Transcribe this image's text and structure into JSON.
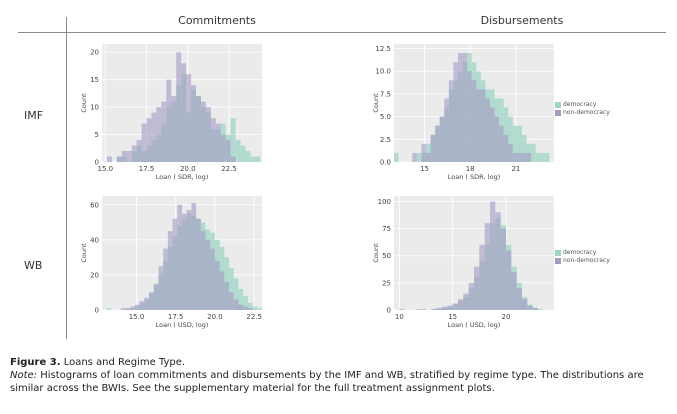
{
  "headers": {
    "columns": [
      "Commitments",
      "Disbursements"
    ],
    "rows": [
      "IMF",
      "WB"
    ]
  },
  "caption": {
    "figure_label": "Figure 3.",
    "title": "Loans and Regime Type.",
    "note_label": "Note:",
    "note_text": "Histograms of loan commitments and disbursements by the IMF and WB, stratified by regime type. The distributions are similar across the BWIs. See the supplementary material for the full treatment assignment plots."
  },
  "colors": {
    "democracy": "#9fd5c6",
    "non_democracy": "#a49ac4",
    "panel_bg": "#ebebeb",
    "grid": "#ffffff"
  },
  "chart_data": [
    {
      "type": "bar",
      "panel": "IMF-Commitments",
      "xlabel": "Loan ( SDR, log)",
      "ylabel": "Count",
      "xlim": [
        14.8,
        24.5
      ],
      "ylim": [
        0,
        21.5
      ],
      "xticks": [
        "15.0",
        "17.5",
        "20.0",
        "22.5"
      ],
      "xtick_values": [
        15.0,
        17.5,
        20.0,
        22.5
      ],
      "yticks": [
        "0",
        "5",
        "10",
        "15",
        "20"
      ],
      "ytick_values": [
        0,
        5,
        10,
        15,
        20
      ],
      "bin_start": 14.8,
      "bin_width": 0.3,
      "series": [
        {
          "name": "democracy",
          "values": [
            0,
            0,
            0,
            1,
            1,
            0,
            2,
            3,
            2,
            3,
            4,
            5,
            7,
            10,
            11,
            14,
            16,
            9,
            13,
            12,
            10,
            9,
            6,
            6,
            7,
            5,
            8,
            4,
            3,
            2,
            1,
            1,
            0,
            0,
            0
          ]
        },
        {
          "name": "non-democracy",
          "values": [
            0,
            1,
            0,
            1,
            2,
            2,
            3,
            4,
            7,
            8,
            9,
            10,
            11,
            15,
            12,
            20,
            18,
            16,
            14,
            12,
            11,
            10,
            8,
            7,
            5,
            4,
            1,
            0,
            0,
            0,
            0,
            0,
            0,
            0,
            0
          ]
        }
      ]
    },
    {
      "type": "bar",
      "panel": "IMF-Disbursements",
      "xlabel": "Loan ( SDR, log)",
      "ylabel": "Count",
      "xlim": [
        13.0,
        23.5
      ],
      "ylim": [
        0,
        13
      ],
      "xticks": [
        "15",
        "18",
        "21"
      ],
      "xtick_values": [
        15,
        18,
        21
      ],
      "yticks": [
        "0.0",
        "2.5",
        "5.0",
        "7.5",
        "10.0",
        "12.5"
      ],
      "ytick_values": [
        0,
        2.5,
        5,
        7.5,
        10,
        12.5
      ],
      "bin_start": 13.0,
      "bin_width": 0.3,
      "series": [
        {
          "name": "democracy",
          "values": [
            1,
            0,
            0,
            0,
            0,
            1,
            1,
            2,
            3,
            4,
            5,
            6,
            8,
            9,
            10,
            11,
            12,
            11,
            10,
            9,
            8,
            8,
            7,
            7,
            6,
            5,
            4,
            4,
            3,
            2,
            2,
            1,
            1,
            1,
            0
          ]
        },
        {
          "name": "non-democracy",
          "values": [
            0,
            0,
            0,
            0,
            1,
            0,
            2,
            1,
            3,
            4,
            5,
            7,
            9,
            11,
            12,
            12,
            10,
            9,
            8,
            8,
            7,
            6,
            5,
            4,
            3,
            2,
            1,
            1,
            1,
            1,
            0,
            0,
            0,
            0,
            0
          ]
        }
      ],
      "legend": {
        "entries": [
          "democracy",
          "non-democracy"
        ],
        "placement": "right"
      }
    },
    {
      "type": "bar",
      "panel": "WB-Commitments",
      "xlabel": "Loan ( USD, log)",
      "ylabel": "Count",
      "xlim": [
        12.8,
        23.0
      ],
      "ylim": [
        0,
        65
      ],
      "xticks": [
        "15.0",
        "17.5",
        "20.0",
        "22.5"
      ],
      "xtick_values": [
        15.0,
        17.5,
        20.0,
        22.5
      ],
      "yticks": [
        "0",
        "20",
        "40",
        "60"
      ],
      "ytick_values": [
        0,
        20,
        40,
        60
      ],
      "bin_start": 12.8,
      "bin_width": 0.3,
      "series": [
        {
          "name": "democracy",
          "values": [
            0,
            1,
            0,
            0,
            0,
            1,
            1,
            2,
            4,
            6,
            10,
            14,
            20,
            28,
            36,
            42,
            48,
            52,
            55,
            54,
            52,
            50,
            46,
            44,
            40,
            36,
            30,
            24,
            18,
            12,
            8,
            4,
            2,
            1
          ]
        },
        {
          "name": "non-democracy",
          "values": [
            0,
            0,
            0,
            0,
            1,
            1,
            2,
            3,
            5,
            7,
            10,
            15,
            25,
            35,
            45,
            52,
            60,
            55,
            57,
            61,
            52,
            45,
            40,
            35,
            28,
            22,
            16,
            10,
            6,
            3,
            2,
            1,
            0,
            0
          ]
        }
      ]
    },
    {
      "type": "bar",
      "panel": "WB-Disbursements",
      "xlabel": "Loan ( USD, log)",
      "ylabel": "Count",
      "xlim": [
        9.5,
        24.5
      ],
      "ylim": [
        0,
        105
      ],
      "xticks": [
        "10",
        "15",
        "20"
      ],
      "xtick_values": [
        10,
        15,
        20
      ],
      "yticks": [
        "0",
        "25",
        "50",
        "75",
        "100"
      ],
      "ytick_values": [
        0,
        25,
        50,
        75,
        100
      ],
      "bin_start": 9.5,
      "bin_width": 0.5,
      "series": [
        {
          "name": "democracy",
          "values": [
            0,
            0,
            0,
            0,
            1,
            0,
            0,
            1,
            1,
            2,
            3,
            5,
            8,
            12,
            20,
            30,
            45,
            60,
            80,
            85,
            78,
            60,
            40,
            25,
            12,
            5,
            2,
            1,
            0,
            0
          ]
        },
        {
          "name": "non-democracy",
          "values": [
            0,
            1,
            0,
            0,
            0,
            1,
            0,
            1,
            2,
            3,
            4,
            6,
            10,
            15,
            25,
            40,
            60,
            80,
            100,
            90,
            75,
            55,
            35,
            20,
            10,
            4,
            2,
            0,
            0,
            0
          ]
        }
      ],
      "legend": {
        "entries": [
          "democracy",
          "non-democracy"
        ],
        "placement": "right"
      }
    }
  ]
}
